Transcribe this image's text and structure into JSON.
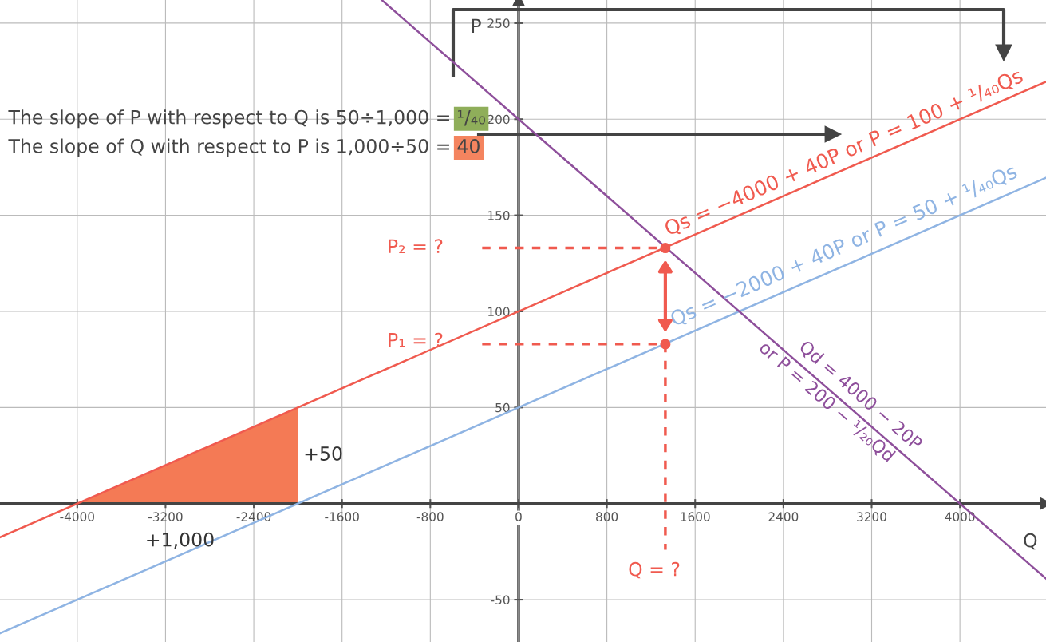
{
  "chart_data": {
    "type": "line",
    "xlabel": "Q",
    "ylabel": "P",
    "xlim": [
      -4700,
      4780
    ],
    "ylim": [
      -72,
      262
    ],
    "xticks": [
      -4000,
      -3200,
      -2400,
      -1600,
      -800,
      0,
      800,
      1600,
      2400,
      3200,
      4000
    ],
    "yticks": [
      -50,
      50,
      100,
      150,
      200,
      250
    ],
    "grid": true,
    "series": [
      {
        "type": "area",
        "color": "#f47a55",
        "x": [
          -4000,
          -2000,
          -2000
        ],
        "values": [
          0,
          50,
          0
        ]
      },
      {
        "color": "#f05a4f",
        "x": [
          -4700,
          4780
        ],
        "values": [
          -17.5,
          219.5
        ]
      },
      {
        "color": "#8fb4e3",
        "x": [
          -4700,
          4780
        ],
        "values": [
          -67.5,
          169.5
        ]
      },
      {
        "color": "#8e4f9b",
        "x": [
          -1240,
          4780
        ],
        "values": [
          262,
          -39
        ]
      },
      {
        "color": "#f05a4f",
        "line_style": "dashed",
        "x": [
          -330,
          1330
        ],
        "values": [
          133,
          133
        ]
      },
      {
        "color": "#f05a4f",
        "line_style": "dashed",
        "x": [
          -330,
          1330
        ],
        "values": [
          83,
          83
        ]
      },
      {
        "color": "#f05a4f",
        "line_style": "dashed",
        "x": [
          1330,
          1330
        ],
        "values": [
          83,
          -24
        ]
      },
      {
        "type": "scatter",
        "color": "#f05a4f",
        "marker": "circle",
        "x": [
          1330,
          1330
        ],
        "values": [
          133,
          83
        ]
      }
    ],
    "annotations": [
      "The slope of P with respect to Q is 50÷1,000 =",
      "¹/₄₀",
      "The slope of Q with respect to P is 1,000÷50 =",
      "40",
      "Qs = −4000 + 40P or P = 100 + ¹/₄₀Qs",
      "Qs = −2000 + 40P or P = 50 + ¹/₄₀Qs",
      "Qd = 4000 − 20P",
      "or P = 200 − ¹/₂₀Qd",
      "P₂ = ?",
      "P₁ = ?",
      "Q = ?",
      "+50",
      "+1,000"
    ]
  }
}
